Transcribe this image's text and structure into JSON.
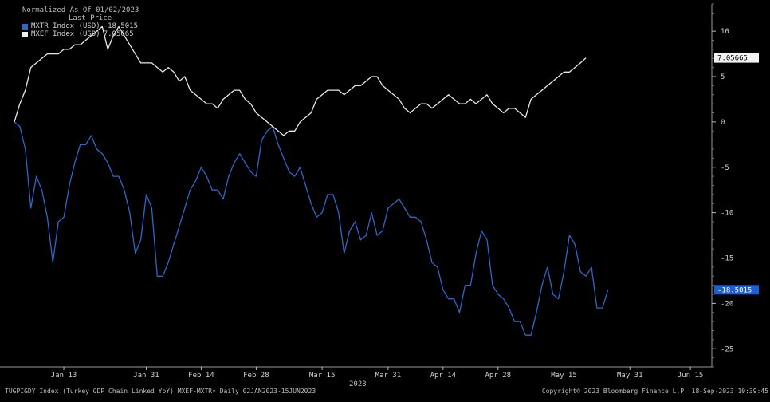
{
  "chart_data": {
    "type": "line",
    "legend": {
      "title": "Normalized As Of 01/02/2023",
      "subtitle": "Last Price",
      "placement": "top-left"
    },
    "series": [
      {
        "name": "MXTR Index (USD)",
        "last_value": "-18.5015",
        "color": "#2e67c8",
        "values": [
          0,
          -0.5,
          -3,
          -9.5,
          -6,
          -7.5,
          -10.5,
          -15.5,
          -11,
          -10.5,
          -7,
          -4.5,
          -2.5,
          -2.5,
          -1.5,
          -3,
          -3.5,
          -4.5,
          -6,
          -6,
          -7.5,
          -10,
          -14.5,
          -13,
          -8,
          -9.5,
          -17,
          -17,
          -15.5,
          -13.5,
          -11.5,
          -9.5,
          -7.5,
          -6.5,
          -5,
          -6,
          -7.5,
          -7.5,
          -8.5,
          -6,
          -4.5,
          -3.5,
          -4.5,
          -5.5,
          -6,
          -2,
          -1,
          -0.5,
          -2.5,
          -4,
          -5.5,
          -6,
          -5,
          -7,
          -9,
          -10.5,
          -10,
          -8,
          -8,
          -10,
          -14.5,
          -12,
          -11,
          -13,
          -12.5,
          -10,
          -12.5,
          -12,
          -9.5,
          -9,
          -8.5,
          -9.5,
          -10.5,
          -10.5,
          -11,
          -13,
          -15.5,
          -16,
          -18.5,
          -19.5,
          -19.5,
          -21,
          -18,
          -18,
          -14.5,
          -12,
          -13,
          -18,
          -19,
          -19.5,
          -20.5,
          -22,
          -22,
          -23.5,
          -23.5,
          -21,
          -18,
          -16,
          -19,
          -19.5,
          -16.5,
          -12.5,
          -13.5,
          -16.5,
          -17,
          -16,
          -20.5,
          -20.5,
          -18.5
        ]
      },
      {
        "name": "MXEF Index (USD)",
        "last_value": "7.05665",
        "color": "#e8e8e8",
        "values": [
          0,
          2,
          3.5,
          6,
          6.5,
          7,
          7.5,
          7.5,
          7.5,
          8,
          8,
          8.5,
          8.5,
          9,
          9.5,
          10,
          10.5,
          8,
          9.5,
          10.5,
          9.5,
          8.5,
          7.5,
          6.5,
          6.5,
          6.5,
          6,
          5.5,
          6,
          5.5,
          4.5,
          5,
          3.5,
          3,
          2.5,
          2,
          2,
          1.5,
          2.5,
          3,
          3.5,
          3.5,
          2.5,
          2,
          1,
          0.5,
          0,
          -0.5,
          -1,
          -1.5,
          -1,
          -1,
          0,
          0.5,
          1,
          2.5,
          3,
          3.5,
          3.5,
          3.5,
          3,
          3.5,
          4,
          4,
          4.5,
          5,
          5,
          4,
          3.5,
          3,
          2.5,
          1.5,
          1,
          1.5,
          2,
          2,
          1.5,
          2,
          2.5,
          3,
          2.5,
          2,
          2,
          2.5,
          2,
          2.5,
          3,
          2,
          1.5,
          1,
          1.5,
          1.5,
          1,
          0.5,
          2.5,
          3,
          3.5,
          4,
          4.5,
          5,
          5.5,
          5.5,
          6,
          6.5,
          7.05665
        ]
      }
    ],
    "x_tick_labels": [
      "Jan 13",
      "Jan 31",
      "Feb 14",
      "Feb 28",
      "Mar 15",
      "Mar 31",
      "Apr 14",
      "Apr 28",
      "May 15",
      "May 31",
      "Jun 15"
    ],
    "x_tick_positions": [
      9,
      24,
      34,
      44,
      56,
      68,
      78,
      88,
      100,
      112,
      123
    ],
    "x_range": [
      0,
      124
    ],
    "year_label": "2023",
    "y_ticks": [
      10,
      5,
      0,
      -5,
      -10,
      -15,
      -20,
      -25
    ],
    "ylim": [
      -27,
      13
    ],
    "grid": false
  },
  "footer": {
    "left": "TUGPIGDY Index (Turkey GDP Chain Linked YoY) MXEF-MXTR•  Daily 02JAN2023-15JUN2023",
    "right": "Copyright© 2023 Bloomberg Finance L.P.     18-Sep-2023 10:39:45"
  }
}
